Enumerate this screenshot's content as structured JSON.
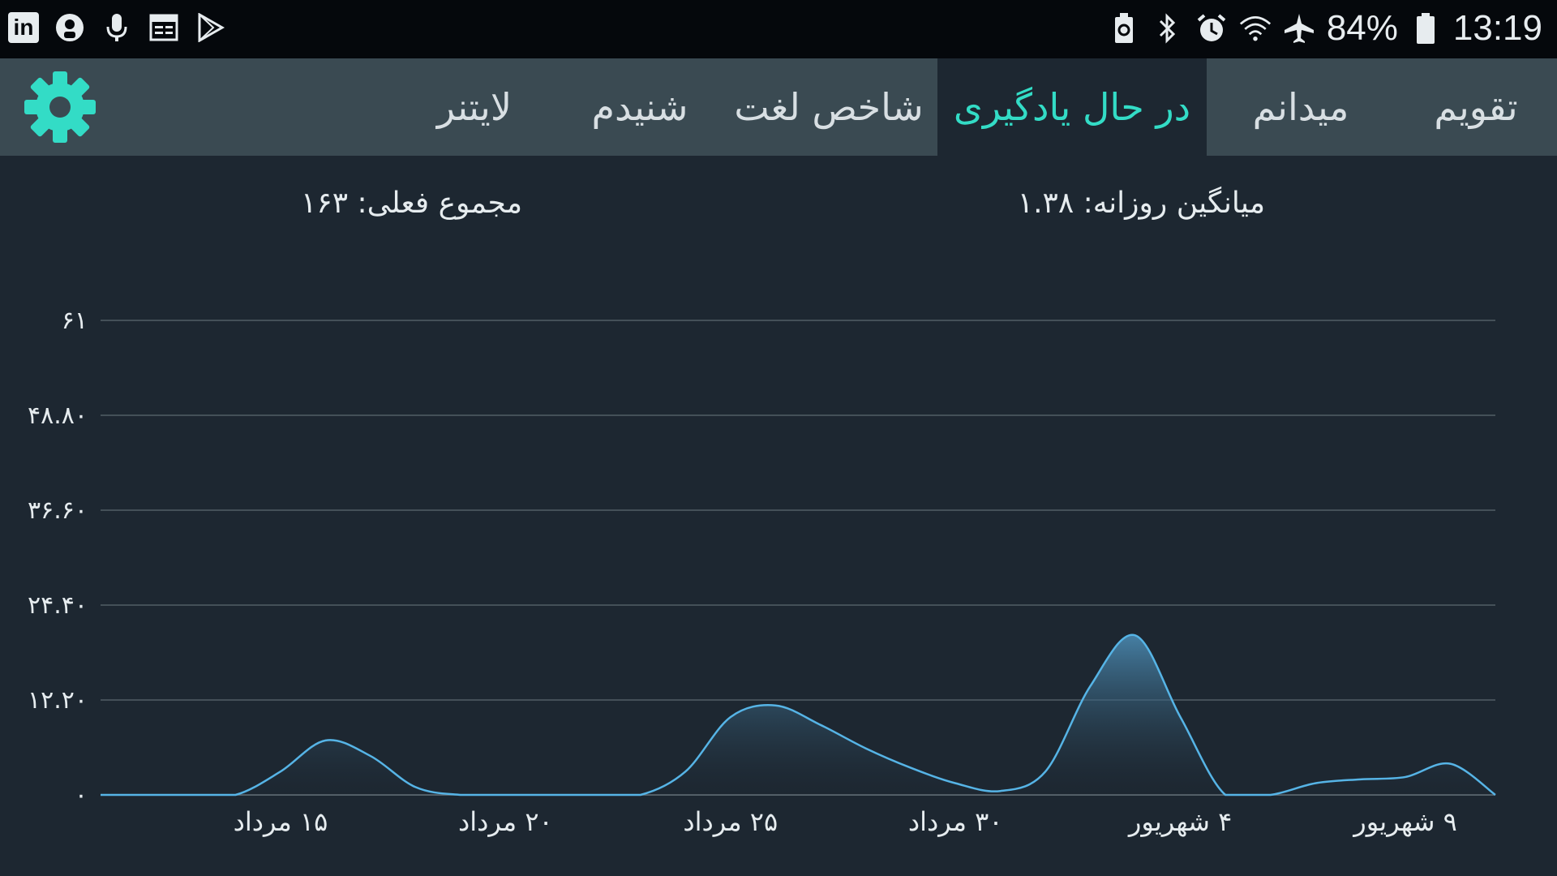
{
  "status_bar": {
    "left_icons": [
      "linkedin-icon",
      "app-icon",
      "microphone-icon",
      "news-icon",
      "play-store-icon"
    ],
    "right_icons": [
      "battery-saver-icon",
      "bluetooth-icon",
      "alarm-icon",
      "wifi-icon",
      "airplane-icon",
      "battery-icon"
    ],
    "battery": "84%",
    "time": "13:19"
  },
  "tabs": [
    {
      "label": "تقویم",
      "active": false
    },
    {
      "label": "میدانم",
      "active": false
    },
    {
      "label": "در حال یادگیری",
      "active": true
    },
    {
      "label": "شاخص لغت",
      "active": false
    },
    {
      "label": "شنیدم",
      "active": false
    },
    {
      "label": "لایتنر",
      "active": false
    }
  ],
  "summary": {
    "daily_average": "میانگین روزانه: ۱.۳۸",
    "current_total": "مجموع فعلی: ۱۶۳"
  },
  "colors": {
    "accent": "#33dcc6",
    "background": "#1d2731",
    "tabbar": "#3a4a52",
    "line": "#56b4e6"
  },
  "chart_data": {
    "type": "area",
    "y_tick_labels": [
      "۰",
      "۱۲.۲۰",
      "۲۴.۴۰",
      "۳۶.۶۰",
      "۴۸.۸۰",
      "۶۱"
    ],
    "ylim": [
      0,
      61
    ],
    "grid": true,
    "x_tick_labels": [
      {
        "label": "۱۵ مرداد",
        "day": 14
      },
      {
        "label": "۲۰ مرداد",
        "day": 19
      },
      {
        "label": "۲۵ مرداد",
        "day": 24
      },
      {
        "label": "۳۰ مرداد",
        "day": 29
      },
      {
        "label": "۴ شهریور",
        "day": 34
      },
      {
        "label": "۹ شهریور",
        "day": 39
      }
    ],
    "x_range": [
      10,
      41
    ],
    "x": [
      10,
      11,
      12,
      13,
      14,
      15,
      16,
      17,
      18,
      19,
      20,
      21,
      22,
      23,
      24,
      25,
      26,
      27,
      28,
      29,
      30,
      31,
      32,
      33,
      34,
      35,
      36,
      37,
      38,
      39,
      40,
      41
    ],
    "values": [
      0,
      0,
      0,
      0,
      3,
      7,
      5,
      1,
      0,
      0,
      0,
      0,
      0,
      3,
      10,
      11.5,
      9,
      6,
      3.5,
      1.5,
      0.5,
      3,
      14,
      20.5,
      10,
      0,
      0,
      1.5,
      2,
      2.3,
      4,
      0
    ]
  }
}
